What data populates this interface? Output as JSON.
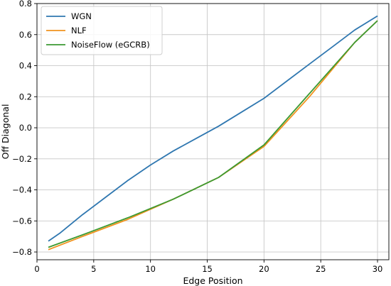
{
  "chart_data": {
    "type": "line",
    "title": "",
    "xlabel": "Edge Position",
    "ylabel": "Off Diagonal",
    "xlim": [
      0,
      31
    ],
    "ylim": [
      -0.85,
      0.8
    ],
    "xticks": [
      0,
      5,
      10,
      15,
      20,
      25,
      30
    ],
    "yticks": [
      -0.8,
      -0.6,
      -0.4,
      -0.2,
      0.0,
      0.2,
      0.4,
      0.6,
      0.8
    ],
    "xtick_labels": [
      "0",
      "5",
      "10",
      "15",
      "20",
      "25",
      "30"
    ],
    "ytick_labels": [
      "−0.8",
      "−0.6",
      "−0.4",
      "−0.2",
      "0.0",
      "0.2",
      "0.4",
      "0.6",
      "0.8"
    ],
    "grid": true,
    "legend_position": "upper left",
    "series": [
      {
        "name": "WGN",
        "color": "#2f77b0",
        "x": [
          1,
          2,
          4,
          6,
          8,
          10,
          12,
          14,
          16,
          18,
          20,
          22,
          24,
          26,
          28,
          30
        ],
        "y": [
          -0.73,
          -0.68,
          -0.56,
          -0.45,
          -0.34,
          -0.24,
          -0.15,
          -0.07,
          0.01,
          0.1,
          0.19,
          0.3,
          0.41,
          0.52,
          0.63,
          0.72
        ]
      },
      {
        "name": "NLF",
        "color": "#f0921e",
        "x": [
          1,
          4,
          8,
          12,
          16,
          20,
          24,
          28,
          30
        ],
        "y": [
          -0.785,
          -0.7,
          -0.59,
          -0.46,
          -0.32,
          -0.12,
          0.2,
          0.55,
          0.69
        ]
      },
      {
        "name": "NoiseFlow (eGCRB)",
        "color": "#3c9a32",
        "x": [
          1,
          4,
          8,
          12,
          16,
          20,
          24,
          28,
          30
        ],
        "y": [
          -0.77,
          -0.69,
          -0.58,
          -0.46,
          -0.32,
          -0.11,
          0.22,
          0.55,
          0.69
        ]
      }
    ]
  }
}
